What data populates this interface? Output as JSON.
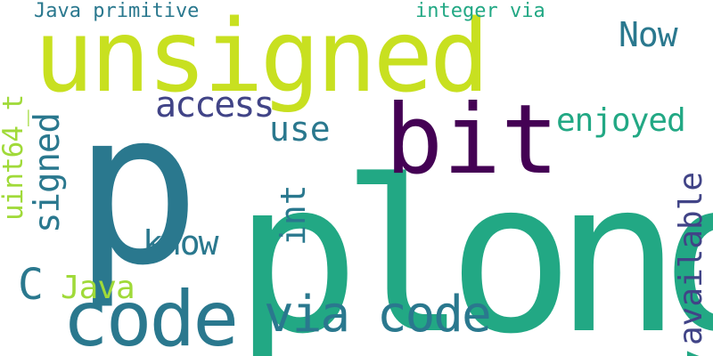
{
  "words": [
    {
      "id": "plong",
      "text": "plong",
      "color": "#22a884"
    },
    {
      "id": "p",
      "text": "p",
      "color": "#2a788e"
    },
    {
      "id": "unsigned",
      "text": "unsigned",
      "color": "#c8e020"
    },
    {
      "id": "bit",
      "text": "bit",
      "color": "#440154"
    },
    {
      "id": "code-1",
      "text": "code",
      "color": "#2a788e"
    },
    {
      "id": "via-code",
      "text": "via code",
      "color": "#2a788e"
    },
    {
      "id": "available",
      "text": "available",
      "color": "#414487"
    },
    {
      "id": "enjoyed",
      "text": "enjoyed",
      "color": "#22a884"
    },
    {
      "id": "access",
      "text": "access",
      "color": "#414487"
    },
    {
      "id": "use",
      "text": "use",
      "color": "#2a788e"
    },
    {
      "id": "now",
      "text": "Now",
      "color": "#2a788e"
    },
    {
      "id": "uint64",
      "text": "uint64_t",
      "color": "#a0da39"
    },
    {
      "id": "signed",
      "text": "signed",
      "color": "#2a788e"
    },
    {
      "id": "int",
      "text": "int",
      "color": "#2a788e"
    },
    {
      "id": "know",
      "text": "know",
      "color": "#2a788e"
    },
    {
      "id": "c",
      "text": "C",
      "color": "#2a788e"
    },
    {
      "id": "java",
      "text": "Java",
      "color": "#a0da39"
    },
    {
      "id": "java-primitive",
      "text": "Java primitive",
      "color": "#2a788e"
    },
    {
      "id": "integer-via",
      "text": "integer via",
      "color": "#22a884"
    }
  ]
}
